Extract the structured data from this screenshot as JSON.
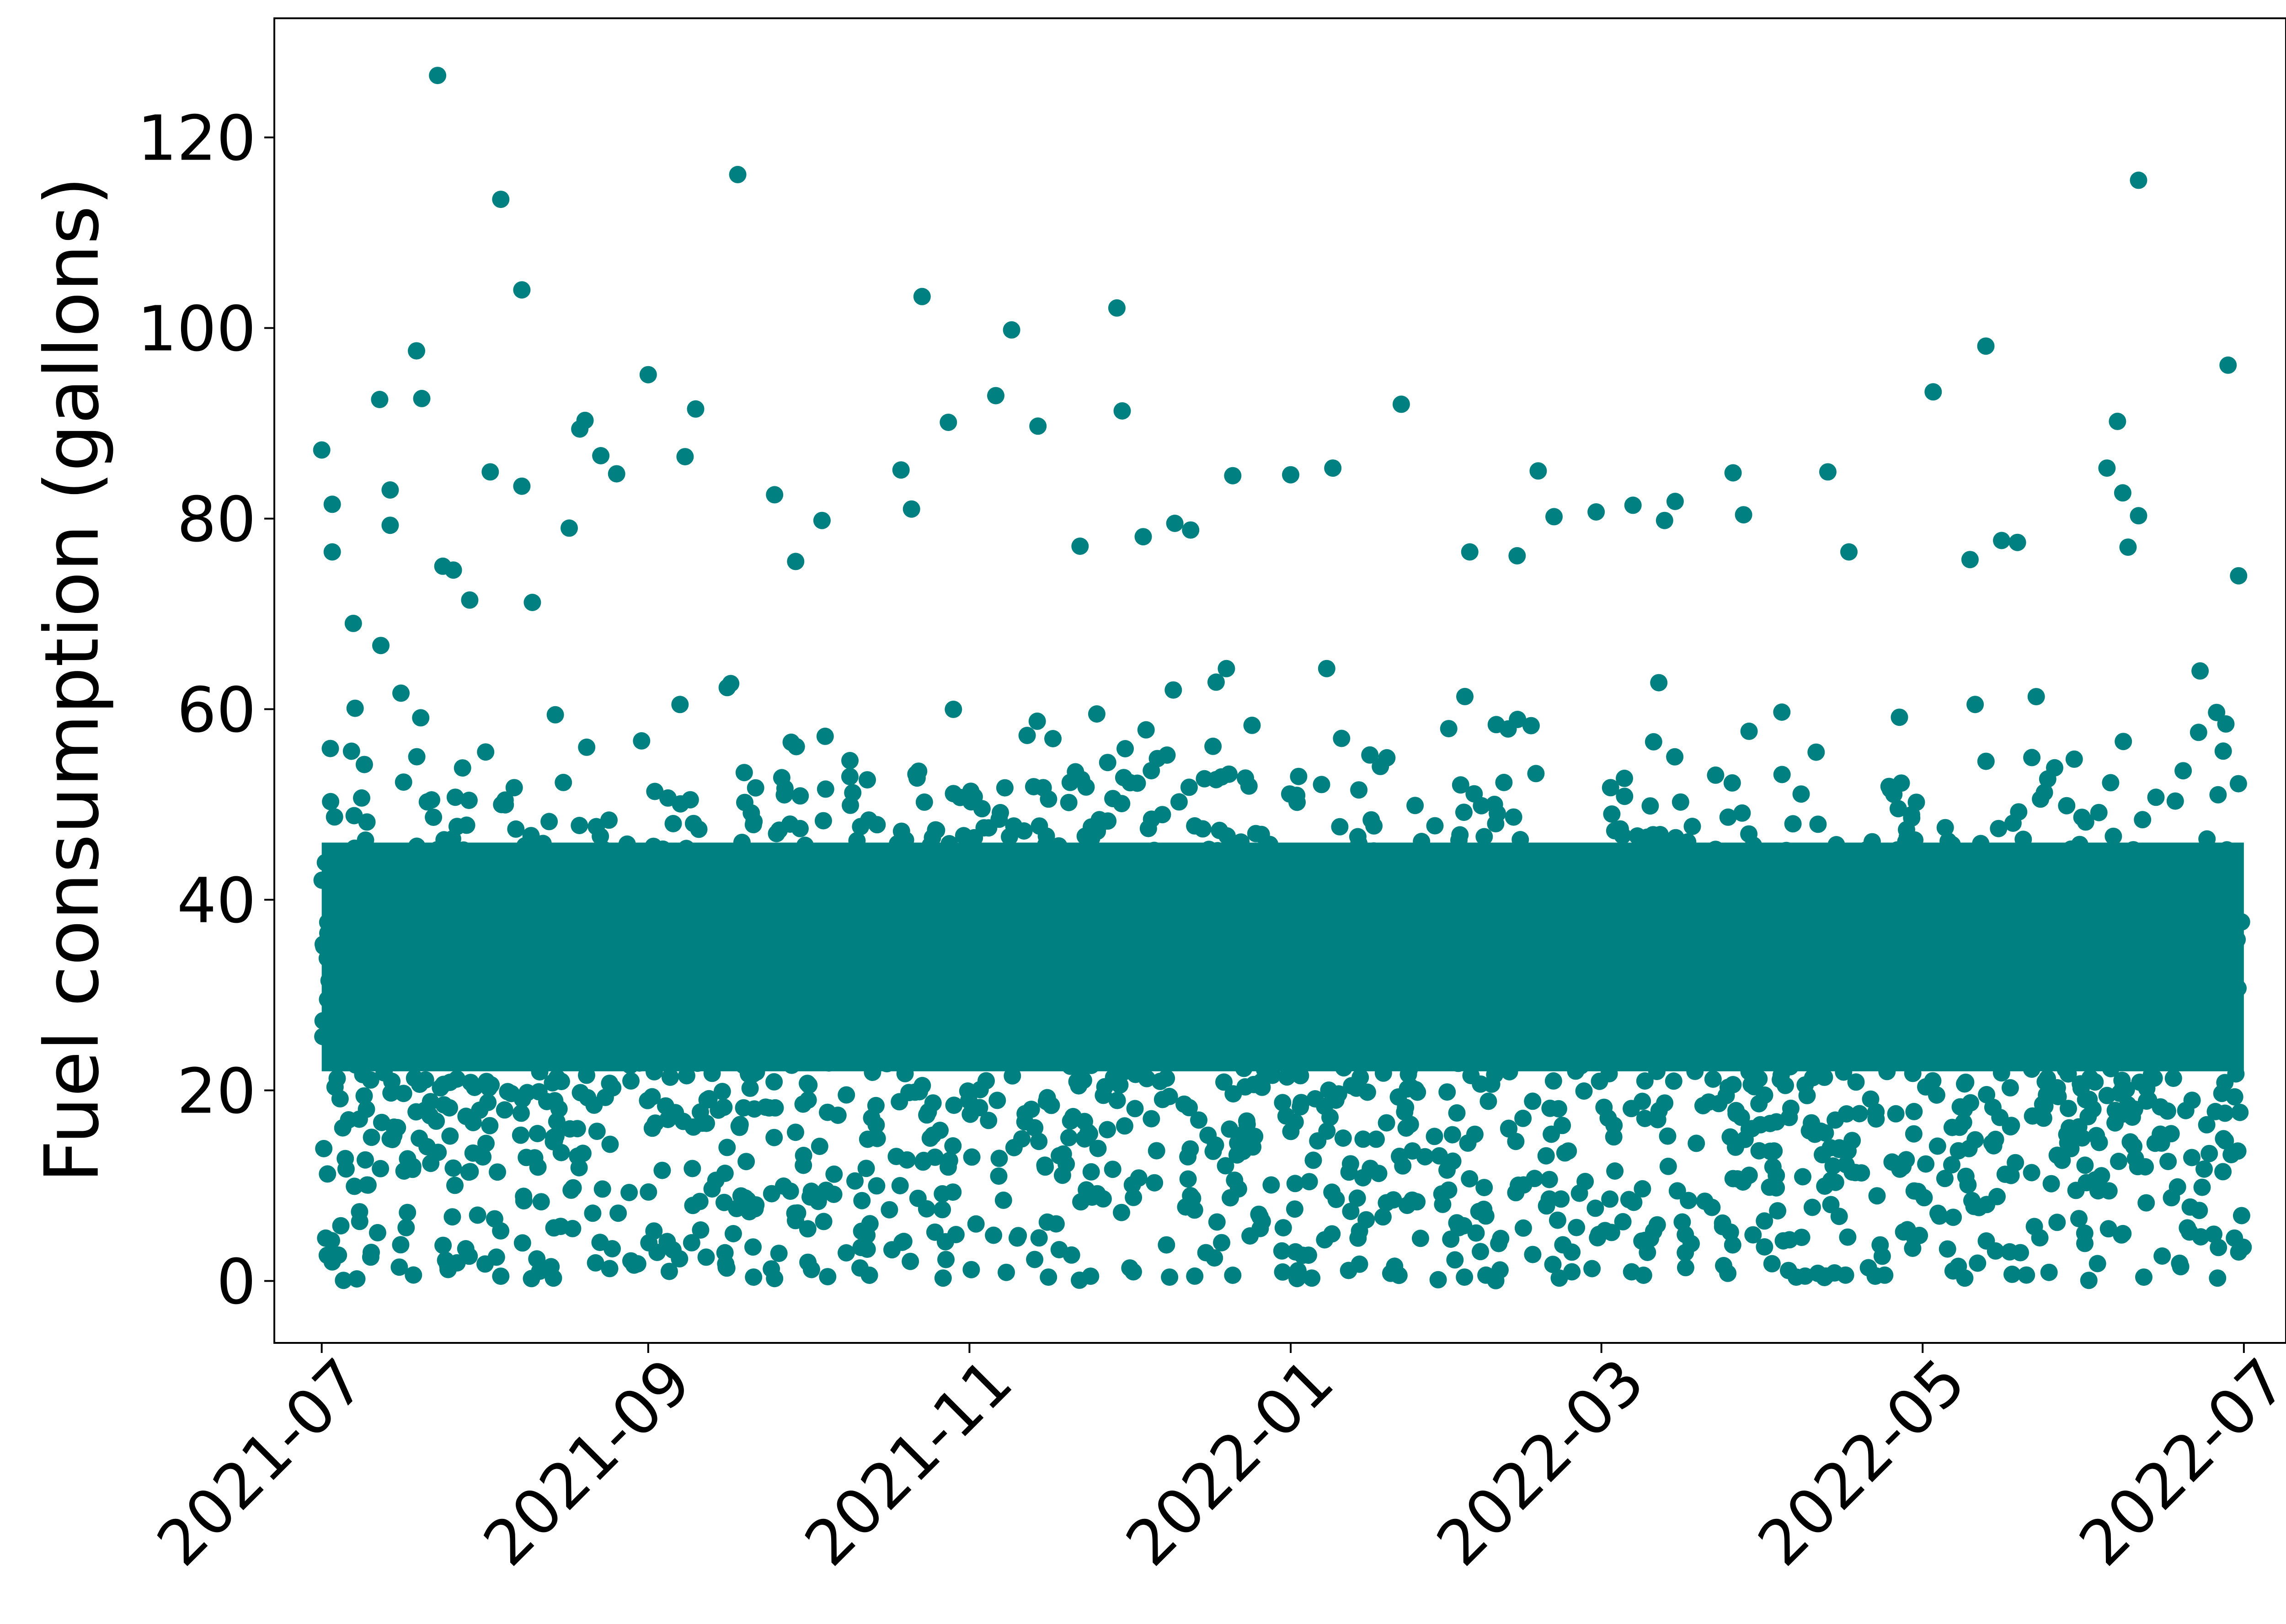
{
  "chart_data": {
    "type": "scatter",
    "title": "",
    "xlabel": "",
    "ylabel": "Fuel consumption (gallons)",
    "x_type": "date",
    "xlim": [
      "2021-06-22",
      "2022-07-09"
    ],
    "ylim": [
      -6.5,
      132.5
    ],
    "x_ticks": [
      "2021-07",
      "2021-09",
      "2021-11",
      "2022-01",
      "2022-03",
      "2022-05",
      "2022-07"
    ],
    "y_ticks": [
      0,
      20,
      40,
      60,
      80,
      100,
      120
    ],
    "x_tick_values": [
      "2021-07-01",
      "2021-09-01",
      "2021-11-01",
      "2022-01-01",
      "2022-03-01",
      "2022-05-01",
      "2022-07-01"
    ],
    "grid": false,
    "legend": "none",
    "marker_color": "#008080",
    "series": [
      {
        "points": [
          [
            "2021-07-01",
            87.2
          ],
          [
            "2021-07-03",
            81.5
          ],
          [
            "2021-07-03",
            76.5
          ],
          [
            "2021-07-07",
            69.0
          ],
          [
            "2021-07-12",
            92.5
          ],
          [
            "2021-07-14",
            83.0
          ],
          [
            "2021-07-14",
            79.3
          ],
          [
            "2021-07-19",
            97.6
          ],
          [
            "2021-07-20",
            92.6
          ],
          [
            "2021-07-23",
            126.5
          ],
          [
            "2021-07-24",
            75.0
          ],
          [
            "2021-07-26",
            74.6
          ],
          [
            "2021-08-02",
            84.9
          ],
          [
            "2021-08-04",
            113.5
          ],
          [
            "2021-08-08",
            104.0
          ],
          [
            "2021-08-08",
            83.4
          ],
          [
            "2021-08-10",
            71.2
          ],
          [
            "2021-08-17",
            79.0
          ],
          [
            "2021-08-19",
            89.4
          ],
          [
            "2021-08-20",
            90.3
          ],
          [
            "2021-08-23",
            86.6
          ],
          [
            "2021-08-26",
            84.7
          ],
          [
            "2021-09-01",
            95.1
          ],
          [
            "2021-09-08",
            86.5
          ],
          [
            "2021-09-10",
            91.5
          ],
          [
            "2021-09-18",
            116.1
          ],
          [
            "2021-09-25",
            82.5
          ],
          [
            "2021-09-29",
            75.5
          ],
          [
            "2021-10-04",
            79.8
          ],
          [
            "2021-10-19",
            85.1
          ],
          [
            "2021-10-21",
            81.0
          ],
          [
            "2021-10-23",
            103.3
          ],
          [
            "2021-10-28",
            90.1
          ],
          [
            "2021-11-06",
            92.9
          ],
          [
            "2021-11-09",
            99.8
          ],
          [
            "2021-11-14",
            89.7
          ],
          [
            "2021-11-22",
            77.1
          ],
          [
            "2021-11-29",
            102.1
          ],
          [
            "2021-11-30",
            91.3
          ],
          [
            "2021-12-04",
            78.1
          ],
          [
            "2021-12-10",
            79.5
          ],
          [
            "2021-12-13",
            78.8
          ],
          [
            "2021-12-21",
            84.5
          ],
          [
            "2022-01-01",
            84.6
          ],
          [
            "2022-01-09",
            85.3
          ],
          [
            "2022-01-22",
            92.0
          ],
          [
            "2022-02-04",
            76.5
          ],
          [
            "2022-02-13",
            76.1
          ],
          [
            "2022-02-17",
            85.0
          ],
          [
            "2022-02-20",
            80.2
          ],
          [
            "2022-02-28",
            80.7
          ],
          [
            "2022-03-07",
            81.4
          ],
          [
            "2022-03-13",
            79.8
          ],
          [
            "2022-03-15",
            81.8
          ],
          [
            "2022-03-26",
            84.8
          ],
          [
            "2022-03-28",
            80.4
          ],
          [
            "2022-04-13",
            84.9
          ],
          [
            "2022-04-17",
            76.5
          ],
          [
            "2022-05-03",
            93.3
          ],
          [
            "2022-05-10",
            75.7
          ],
          [
            "2022-05-13",
            98.1
          ],
          [
            "2022-05-16",
            77.7
          ],
          [
            "2022-05-19",
            77.5
          ],
          [
            "2022-06-05",
            85.3
          ],
          [
            "2022-06-07",
            90.2
          ],
          [
            "2022-06-08",
            82.7
          ],
          [
            "2022-06-09",
            77.0
          ],
          [
            "2022-06-11",
            115.5
          ],
          [
            "2022-06-11",
            80.3
          ],
          [
            "2022-06-28",
            96.1
          ],
          [
            "2022-06-30",
            74.0
          ],
          [
            "2021-07-16",
            3.8
          ],
          [
            "2021-07-25",
            1.2
          ],
          [
            "2021-08-04",
            0.5
          ],
          [
            "2021-08-14",
            0.3
          ],
          [
            "2021-08-30",
            1.8
          ],
          [
            "2021-09-12",
            2.5
          ],
          [
            "2021-09-21",
            0.4
          ],
          [
            "2021-10-02",
            1.2
          ],
          [
            "2021-10-13",
            0.6
          ],
          [
            "2021-10-27",
            0.3
          ],
          [
            "2021-11-08",
            0.9
          ],
          [
            "2021-11-24",
            0.5
          ],
          [
            "2021-12-09",
            0.4
          ],
          [
            "2021-12-21",
            0.6
          ],
          [
            "2022-01-05",
            0.3
          ],
          [
            "2022-01-20",
            0.8
          ],
          [
            "2022-02-03",
            0.4
          ],
          [
            "2022-02-21",
            0.3
          ],
          [
            "2022-03-09",
            0.6
          ],
          [
            "2022-03-25",
            0.8
          ],
          [
            "2022-04-07",
            0.4
          ],
          [
            "2022-04-22",
            0.5
          ],
          [
            "2022-05-09",
            0.3
          ],
          [
            "2022-05-25",
            0.9
          ],
          [
            "2022-06-12",
            0.4
          ],
          [
            "2022-06-26",
            0.3
          ],
          [
            "2021-07-03",
            2.0
          ],
          [
            "2021-07-29",
            2.6
          ],
          [
            "2021-08-22",
            1.9
          ],
          [
            "2021-09-05",
            1.0
          ],
          [
            "2021-11-16",
            0.4
          ],
          [
            "2022-01-12",
            1.1
          ],
          [
            "2022-03-17",
            1.4
          ],
          [
            "2022-05-18",
            0.7
          ],
          [
            "2022-06-19",
            1.5
          ]
        ]
      }
    ]
  }
}
